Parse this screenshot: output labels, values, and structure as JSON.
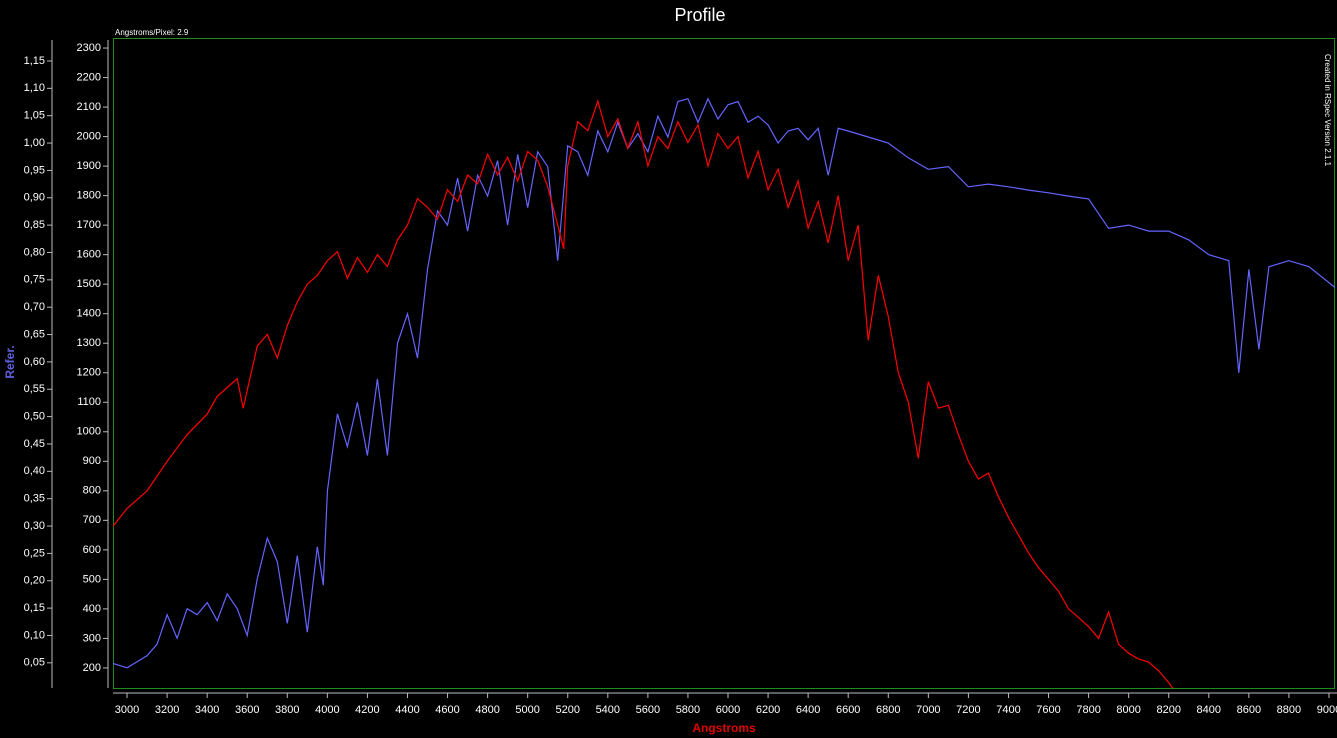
{
  "chart_data": {
    "type": "line",
    "title": "Profile",
    "annotation": "Angstroms/Pixel: 2.9",
    "watermark": "Created in RSpec Version 2.1.1",
    "xlabel": "Angstroms",
    "xlabel_color": "#e00000",
    "y2label": "Refer.",
    "y2label_color": "#6060e0",
    "frame_color": "#1e8c1e",
    "xlim": [
      2930,
      9030
    ],
    "xticks": [
      3000,
      3200,
      3400,
      3600,
      3800,
      4000,
      4200,
      4400,
      4600,
      4800,
      5000,
      5200,
      5400,
      5600,
      5800,
      6000,
      6200,
      6400,
      6600,
      6800,
      7000,
      7200,
      7400,
      7600,
      7800,
      8000,
      8200,
      8400,
      8600,
      8800,
      9000
    ],
    "ylim": [
      132,
      2334
    ],
    "yticks": [
      200,
      300,
      400,
      500,
      600,
      700,
      800,
      900,
      1000,
      1100,
      1200,
      1300,
      1400,
      1500,
      1600,
      1700,
      1800,
      1900,
      2000,
      2100,
      2200,
      2300
    ],
    "y2lim": [
      0.004,
      1.192
    ],
    "y2ticks": [
      {
        "value": 0.05,
        "label": "0,05"
      },
      {
        "value": 0.1,
        "label": "0,10"
      },
      {
        "value": 0.15,
        "label": "0,15"
      },
      {
        "value": 0.2,
        "label": "0,20"
      },
      {
        "value": 0.25,
        "label": "0,25"
      },
      {
        "value": 0.3,
        "label": "0,30"
      },
      {
        "value": 0.35,
        "label": "0,35"
      },
      {
        "value": 0.4,
        "label": "0,40"
      },
      {
        "value": 0.45,
        "label": "0,45"
      },
      {
        "value": 0.5,
        "label": "0,50"
      },
      {
        "value": 0.55,
        "label": "0,55"
      },
      {
        "value": 0.6,
        "label": "0,60"
      },
      {
        "value": 0.65,
        "label": "0,65"
      },
      {
        "value": 0.7,
        "label": "0,70"
      },
      {
        "value": 0.75,
        "label": "0,75"
      },
      {
        "value": 0.8,
        "label": "0,80"
      },
      {
        "value": 0.85,
        "label": "0,85"
      },
      {
        "value": 0.9,
        "label": "0,90"
      },
      {
        "value": 0.95,
        "label": "0,95"
      },
      {
        "value": 1.0,
        "label": "1,00"
      },
      {
        "value": 1.05,
        "label": "1,05"
      },
      {
        "value": 1.1,
        "label": "1,10"
      },
      {
        "value": 1.15,
        "label": "1,15"
      }
    ],
    "series": [
      {
        "color": "#6464ff",
        "axis": "y2",
        "x": [
          2930,
          3000,
          3100,
          3150,
          3200,
          3250,
          3300,
          3350,
          3400,
          3450,
          3500,
          3550,
          3600,
          3650,
          3700,
          3750,
          3800,
          3850,
          3900,
          3950,
          3980,
          4000,
          4050,
          4100,
          4150,
          4200,
          4250,
          4300,
          4350,
          4400,
          4450,
          4500,
          4550,
          4600,
          4650,
          4700,
          4750,
          4800,
          4850,
          4900,
          4950,
          5000,
          5050,
          5100,
          5150,
          5200,
          5250,
          5300,
          5350,
          5400,
          5450,
          5500,
          5550,
          5600,
          5650,
          5700,
          5750,
          5800,
          5850,
          5900,
          5950,
          6000,
          6050,
          6100,
          6150,
          6200,
          6250,
          6300,
          6350,
          6400,
          6450,
          6500,
          6550,
          6600,
          6700,
          6800,
          6900,
          7000,
          7100,
          7200,
          7300,
          7400,
          7500,
          7600,
          7700,
          7800,
          7900,
          8000,
          8100,
          8200,
          8300,
          8400,
          8500,
          8550,
          8600,
          8650,
          8700,
          8800,
          8900,
          9030
        ],
        "values": [
          0.049,
          0.041,
          0.063,
          0.084,
          0.138,
          0.095,
          0.149,
          0.138,
          0.16,
          0.127,
          0.176,
          0.149,
          0.1,
          0.203,
          0.278,
          0.235,
          0.122,
          0.246,
          0.106,
          0.262,
          0.192,
          0.364,
          0.505,
          0.445,
          0.526,
          0.429,
          0.569,
          0.429,
          0.634,
          0.688,
          0.607,
          0.769,
          0.876,
          0.85,
          0.936,
          0.839,
          0.941,
          0.903,
          0.968,
          0.85,
          0.979,
          0.882,
          0.984,
          0.957,
          0.785,
          0.995,
          0.984,
          0.941,
          1.022,
          0.984,
          1.038,
          0.99,
          1.017,
          0.984,
          1.049,
          1.011,
          1.076,
          1.081,
          1.038,
          1.081,
          1.044,
          1.07,
          1.076,
          1.038,
          1.049,
          1.033,
          1.0,
          1.022,
          1.027,
          1.006,
          1.027,
          0.941,
          1.027,
          1.022,
          1.011,
          1.0,
          0.973,
          0.952,
          0.957,
          0.92,
          0.925,
          0.92,
          0.914,
          0.909,
          0.903,
          0.898,
          0.844,
          0.85,
          0.839,
          0.839,
          0.823,
          0.796,
          0.785,
          0.58,
          0.769,
          0.623,
          0.774,
          0.785,
          0.774,
          0.736
        ]
      },
      {
        "color": "#ff0000",
        "x": [
          2930,
          3000,
          3100,
          3200,
          3300,
          3400,
          3450,
          3500,
          3550,
          3580,
          3600,
          3650,
          3700,
          3750,
          3800,
          3850,
          3900,
          3950,
          4000,
          4050,
          4100,
          4150,
          4200,
          4250,
          4300,
          4350,
          4400,
          4450,
          4500,
          4550,
          4600,
          4650,
          4700,
          4750,
          4800,
          4850,
          4900,
          4950,
          5000,
          5050,
          5100,
          5150,
          5180,
          5200,
          5250,
          5300,
          5350,
          5400,
          5450,
          5500,
          5550,
          5600,
          5650,
          5700,
          5750,
          5800,
          5850,
          5900,
          5950,
          6000,
          6050,
          6100,
          6150,
          6200,
          6250,
          6300,
          6350,
          6400,
          6450,
          6500,
          6550,
          6600,
          6650,
          6700,
          6750,
          6800,
          6850,
          6900,
          6950,
          7000,
          7050,
          7100,
          7150,
          7200,
          7250,
          7300,
          7350,
          7400,
          7450,
          7500,
          7550,
          7600,
          7650,
          7700,
          7750,
          7800,
          7850,
          7900,
          7950,
          8000,
          8050,
          8100,
          8150,
          8200,
          8220
        ],
        "values": [
          680,
          740,
          800,
          900,
          990,
          1060,
          1120,
          1150,
          1180,
          1080,
          1140,
          1290,
          1330,
          1250,
          1360,
          1440,
          1500,
          1530,
          1580,
          1610,
          1520,
          1590,
          1540,
          1600,
          1560,
          1650,
          1700,
          1790,
          1760,
          1720,
          1820,
          1780,
          1870,
          1840,
          1940,
          1870,
          1930,
          1850,
          1950,
          1920,
          1830,
          1700,
          1620,
          1900,
          2050,
          2020,
          2120,
          2000,
          2060,
          1960,
          2050,
          1900,
          2000,
          1960,
          2050,
          1980,
          2040,
          1900,
          2010,
          1960,
          2000,
          1860,
          1950,
          1820,
          1890,
          1760,
          1850,
          1690,
          1780,
          1640,
          1800,
          1580,
          1700,
          1310,
          1530,
          1390,
          1200,
          1100,
          910,
          1170,
          1080,
          1090,
          990,
          900,
          840,
          860,
          780,
          710,
          650,
          590,
          540,
          500,
          460,
          400,
          370,
          340,
          300,
          390,
          280,
          250,
          230,
          220,
          190,
          150,
          132
        ]
      }
    ]
  }
}
